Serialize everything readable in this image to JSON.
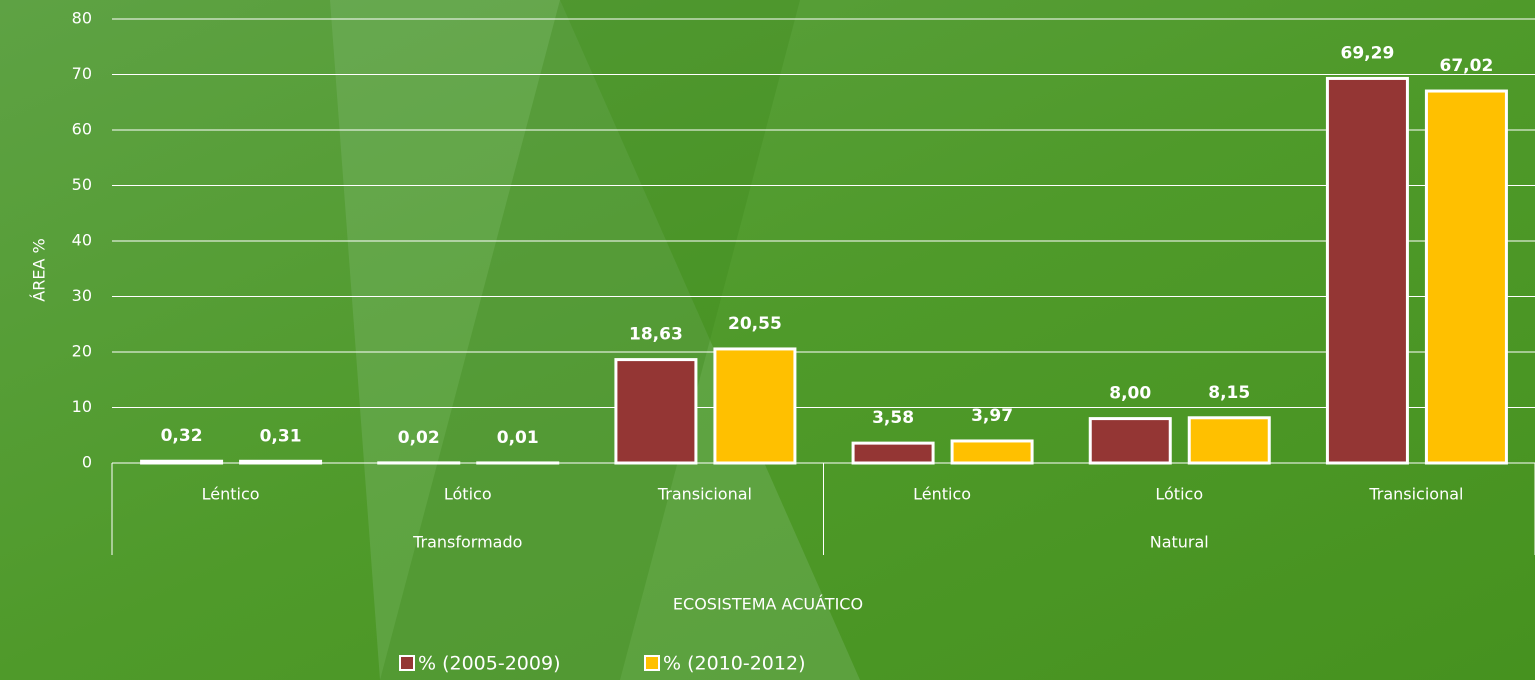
{
  "chart_data": {
    "type": "bar",
    "categories": [
      "Léntico",
      "Lótico",
      "Transicional",
      "Léntico",
      "Lótico",
      "Transicional"
    ],
    "group_labels": [
      "Transformado",
      "Natural"
    ],
    "series": [
      {
        "name": "% (2005-2009)",
        "color": "#943634",
        "values": [
          0.32,
          0.02,
          18.63,
          3.58,
          8.0,
          69.29
        ],
        "value_labels": [
          "0,32",
          "0,02",
          "18,63",
          "3,58",
          "8,00",
          "69,29"
        ]
      },
      {
        "name": "% (2010-2012)",
        "color": "#ffc000",
        "values": [
          0.31,
          0.01,
          20.55,
          3.97,
          8.15,
          67.02
        ],
        "value_labels": [
          "0,31",
          "0,01",
          "20,55",
          "3,97",
          "8,15",
          "67,02"
        ]
      }
    ],
    "xlabel": "ECOSISTEMA ACUÁTICO",
    "ylabel": "ÁREA %",
    "ylim": [
      0,
      80
    ],
    "yticks": [
      0,
      10,
      20,
      30,
      40,
      50,
      60,
      70,
      80
    ],
    "grid": true
  }
}
